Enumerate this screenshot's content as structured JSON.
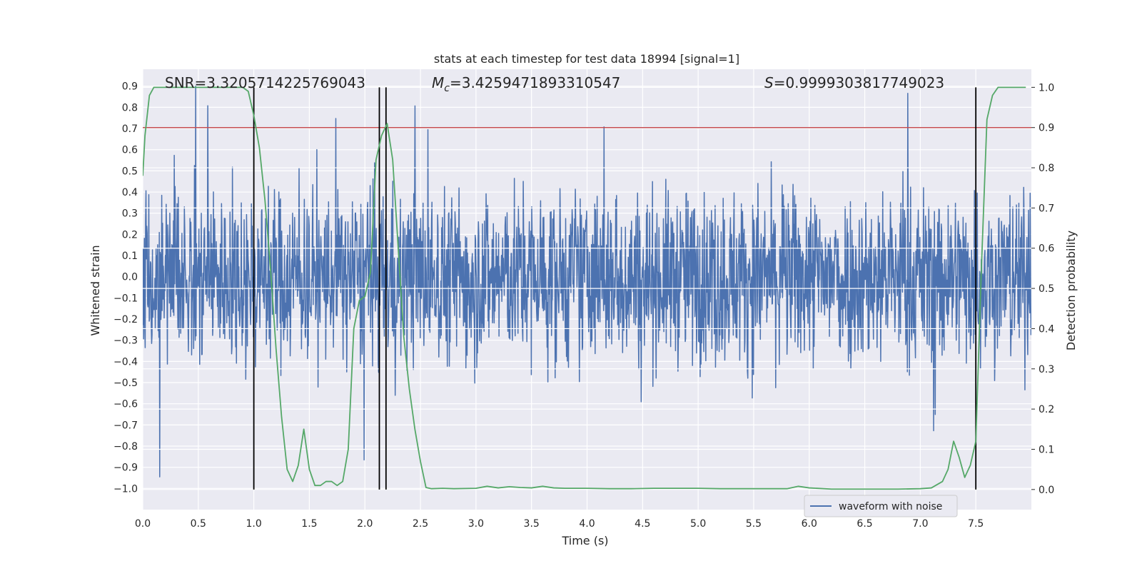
{
  "chart_data": {
    "type": "line",
    "title": "stats at each timestep for test data 18994 [signal=1]",
    "xlabel": "Time (s)",
    "ylabel": "Whitened strain",
    "ylabel_right": "Detection probability",
    "xlim": [
      0.0,
      8.0
    ],
    "ylim": [
      -1.1,
      0.98
    ],
    "ylim_right": [
      -0.05,
      1.045
    ],
    "xticks": [
      "0.0",
      "0.5",
      "1.0",
      "1.5",
      "2.0",
      "2.5",
      "3.0",
      "3.5",
      "4.0",
      "4.5",
      "5.0",
      "5.5",
      "6.0",
      "6.5",
      "7.0",
      "7.5"
    ],
    "yticks": [
      "0.9",
      "0.8",
      "0.7",
      "0.6",
      "0.5",
      "0.4",
      "0.3",
      "0.2",
      "0.1",
      "0.0",
      "-0.1",
      "-0.2",
      "-0.3",
      "-0.4",
      "-0.5",
      "-0.6",
      "-0.7",
      "-0.8",
      "-0.9",
      "-1.0"
    ],
    "yticks_right": [
      "1.0",
      "0.9",
      "0.8",
      "0.7",
      "0.6",
      "0.5",
      "0.4",
      "0.3",
      "0.2",
      "0.1",
      "0.0"
    ],
    "grid": true,
    "legend_position": "lower-right",
    "annotations": {
      "snr": "SNR=3.3205714225769043",
      "mc_symbol": "M",
      "mc_sub": "c",
      "mc_value": "=3.4259471893310547",
      "s_symbol": "S",
      "s_value": "=0.9999303817749023"
    },
    "threshold": 0.9,
    "vlines": [
      1.0,
      2.13,
      2.19,
      7.5
    ],
    "series": [
      {
        "name": "waveform with noise",
        "color": "#4c72b0",
        "axis": "left",
        "kind": "noise",
        "typical_range": [
          -0.3,
          0.3
        ],
        "max_excursion": [
          -1.0,
          0.9
        ]
      },
      {
        "color": "#55a868",
        "axis": "right",
        "x": [
          0.0,
          0.02,
          0.06,
          0.1,
          0.2,
          0.3,
          0.5,
          0.7,
          0.8,
          0.9,
          0.95,
          1.0,
          1.05,
          1.1,
          1.15,
          1.2,
          1.25,
          1.3,
          1.35,
          1.4,
          1.45,
          1.5,
          1.55,
          1.6,
          1.65,
          1.7,
          1.75,
          1.8,
          1.85,
          1.9,
          1.95,
          2.0,
          2.05,
          2.1,
          2.15,
          2.2,
          2.25,
          2.3,
          2.35,
          2.4,
          2.45,
          2.5,
          2.55,
          2.6,
          2.7,
          2.8,
          3.0,
          3.1,
          3.2,
          3.3,
          3.4,
          3.5,
          3.6,
          3.7,
          3.8,
          4.0,
          4.2,
          4.4,
          4.6,
          4.8,
          5.0,
          5.2,
          5.5,
          5.8,
          5.9,
          6.0,
          6.2,
          6.5,
          6.8,
          7.0,
          7.1,
          7.2,
          7.25,
          7.3,
          7.35,
          7.4,
          7.45,
          7.5,
          7.55,
          7.6,
          7.65,
          7.7,
          7.8,
          7.95
        ],
        "values": [
          0.78,
          0.88,
          0.98,
          1.0,
          1.0,
          1.0,
          1.0,
          1.0,
          1.0,
          1.0,
          0.99,
          0.93,
          0.85,
          0.72,
          0.55,
          0.35,
          0.18,
          0.05,
          0.02,
          0.06,
          0.15,
          0.05,
          0.01,
          0.01,
          0.02,
          0.02,
          0.01,
          0.02,
          0.1,
          0.4,
          0.47,
          0.48,
          0.54,
          0.82,
          0.88,
          0.91,
          0.82,
          0.6,
          0.38,
          0.25,
          0.15,
          0.07,
          0.005,
          0.002,
          0.003,
          0.002,
          0.003,
          0.008,
          0.004,
          0.007,
          0.005,
          0.004,
          0.008,
          0.004,
          0.003,
          0.003,
          0.002,
          0.002,
          0.003,
          0.003,
          0.003,
          0.002,
          0.002,
          0.002,
          0.008,
          0.004,
          0.001,
          0.001,
          0.001,
          0.002,
          0.004,
          0.02,
          0.05,
          0.12,
          0.08,
          0.03,
          0.06,
          0.12,
          0.55,
          0.92,
          0.98,
          1.0,
          1.0,
          1.0
        ]
      }
    ]
  }
}
